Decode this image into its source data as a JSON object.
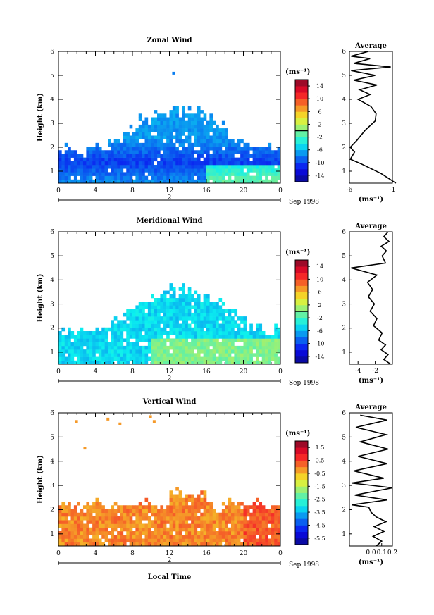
{
  "figure": {
    "date_label": "Sep 1998",
    "date_day": "2",
    "xlabel_bottom": "Local Time",
    "colorbar_unit": "(ms⁻¹)",
    "avg_unit": "(ms⁻¹)"
  },
  "chart_data": [
    {
      "type": "heatmap",
      "title": "Zonal Wind",
      "xlabel": "",
      "ylabel": "Height (km)",
      "xlim": [
        0,
        24
      ],
      "ylim": [
        0.5,
        6
      ],
      "x_ticks": [
        "0",
        "4",
        "8",
        "12",
        "16",
        "20",
        "0"
      ],
      "y_ticks": [
        "1",
        "2",
        "3",
        "4",
        "5",
        "6"
      ],
      "colorbar": {
        "range": [
          -16,
          16
        ],
        "ticks": [
          "14",
          "10",
          "6",
          "2",
          "-2",
          "-6",
          "-10",
          "-14"
        ],
        "zero_line": 0
      },
      "average_panel": {
        "title": "Average",
        "xlim": [
          -6,
          -1
        ],
        "x_ticks": [
          "-6",
          "-1"
        ],
        "y_ticks": [
          "1",
          "2",
          "3",
          "4",
          "5",
          "6"
        ],
        "profile": [
          [
            -0.6,
            0.5
          ],
          [
            -2.3,
            0.9
          ],
          [
            -4.6,
            1.3
          ],
          [
            -5.9,
            1.5
          ],
          [
            -5.4,
            1.8
          ],
          [
            -5.9,
            2.0
          ],
          [
            -5.1,
            2.3
          ],
          [
            -4.2,
            2.7
          ],
          [
            -3.0,
            3.1
          ],
          [
            -2.9,
            3.4
          ],
          [
            -3.5,
            3.7
          ],
          [
            -5.0,
            4.0
          ],
          [
            -3.6,
            4.2
          ],
          [
            -4.8,
            4.4
          ],
          [
            -2.8,
            4.6
          ],
          [
            -5.5,
            4.8
          ],
          [
            -3.0,
            5.0
          ],
          [
            -5.8,
            5.2
          ],
          [
            -1.2,
            5.35
          ],
          [
            -5.5,
            5.5
          ],
          [
            -3.6,
            5.7
          ],
          [
            -5.8,
            5.8
          ],
          [
            -3.8,
            6.0
          ]
        ]
      }
    },
    {
      "type": "heatmap",
      "title": "Meridional Wind",
      "xlabel": "",
      "ylabel": "Height (km)",
      "xlim": [
        0,
        24
      ],
      "ylim": [
        0.5,
        6
      ],
      "x_ticks": [
        "0",
        "4",
        "8",
        "12",
        "16",
        "20",
        "0"
      ],
      "y_ticks": [
        "1",
        "2",
        "3",
        "4",
        "5",
        "6"
      ],
      "colorbar": {
        "range": [
          -16,
          16
        ],
        "ticks": [
          "14",
          "10",
          "6",
          "2",
          "-2",
          "-6",
          "-10",
          "-14"
        ],
        "zero_line": 0
      },
      "average_panel": {
        "title": "Average",
        "xlim": [
          -5,
          0
        ],
        "x_ticks": [
          "-4",
          "-2"
        ],
        "y_ticks": [
          "1",
          "2",
          "3",
          "4",
          "5",
          "6"
        ],
        "profile": [
          [
            -0.2,
            0.5
          ],
          [
            -1.0,
            0.7
          ],
          [
            -0.5,
            0.9
          ],
          [
            -1.3,
            1.1
          ],
          [
            -0.8,
            1.3
          ],
          [
            -1.6,
            1.5
          ],
          [
            -1.2,
            1.8
          ],
          [
            -2.2,
            2.1
          ],
          [
            -1.8,
            2.4
          ],
          [
            -2.6,
            2.7
          ],
          [
            -2.1,
            3.0
          ],
          [
            -2.8,
            3.3
          ],
          [
            -2.3,
            3.6
          ],
          [
            -2.9,
            3.9
          ],
          [
            -1.8,
            4.2
          ],
          [
            -4.8,
            4.5
          ],
          [
            -0.8,
            4.7
          ],
          [
            -1.2,
            5.0
          ],
          [
            -0.7,
            5.2
          ],
          [
            -1.3,
            5.4
          ],
          [
            -0.4,
            5.6
          ],
          [
            -1.0,
            5.8
          ],
          [
            -0.5,
            6.0
          ]
        ]
      }
    },
    {
      "type": "heatmap",
      "title": "Vertical Wind",
      "xlabel": "Local Time",
      "ylabel": "Height (km)",
      "xlim": [
        0,
        24
      ],
      "ylim": [
        0.5,
        6
      ],
      "x_ticks": [
        "0",
        "4",
        "8",
        "12",
        "16",
        "20",
        "0"
      ],
      "y_ticks": [
        "1",
        "2",
        "3",
        "4",
        "5",
        "6"
      ],
      "colorbar": {
        "range": [
          -6.0,
          2.0
        ],
        "ticks": [
          "1.5",
          "0.5",
          "-0.5",
          "-1.5",
          "-2.5",
          "-3.5",
          "-4.5",
          "-5.5"
        ]
      },
      "average_panel": {
        "title": "Average",
        "xlim": [
          -0.2,
          0.2
        ],
        "x_ticks": [
          "0.0",
          "0.1",
          "0.2"
        ],
        "y_ticks": [
          "1",
          "2",
          "3",
          "4",
          "5",
          "6"
        ],
        "profile": [
          [
            0.05,
            0.5
          ],
          [
            0.1,
            0.7
          ],
          [
            0.02,
            0.9
          ],
          [
            0.12,
            1.1
          ],
          [
            0.03,
            1.3
          ],
          [
            0.14,
            1.5
          ],
          [
            0.05,
            1.7
          ],
          [
            0.0,
            1.9
          ],
          [
            -0.02,
            2.1
          ],
          [
            -0.18,
            2.2
          ],
          [
            0.15,
            2.4
          ],
          [
            -0.15,
            2.6
          ],
          [
            0.2,
            2.9
          ],
          [
            -0.18,
            3.1
          ],
          [
            0.12,
            3.3
          ],
          [
            -0.16,
            3.6
          ],
          [
            0.15,
            3.9
          ],
          [
            -0.12,
            4.2
          ],
          [
            0.16,
            4.5
          ],
          [
            -0.1,
            4.8
          ],
          [
            0.14,
            5.1
          ],
          [
            -0.14,
            5.4
          ],
          [
            0.15,
            5.7
          ],
          [
            -0.1,
            5.9
          ]
        ]
      }
    }
  ]
}
